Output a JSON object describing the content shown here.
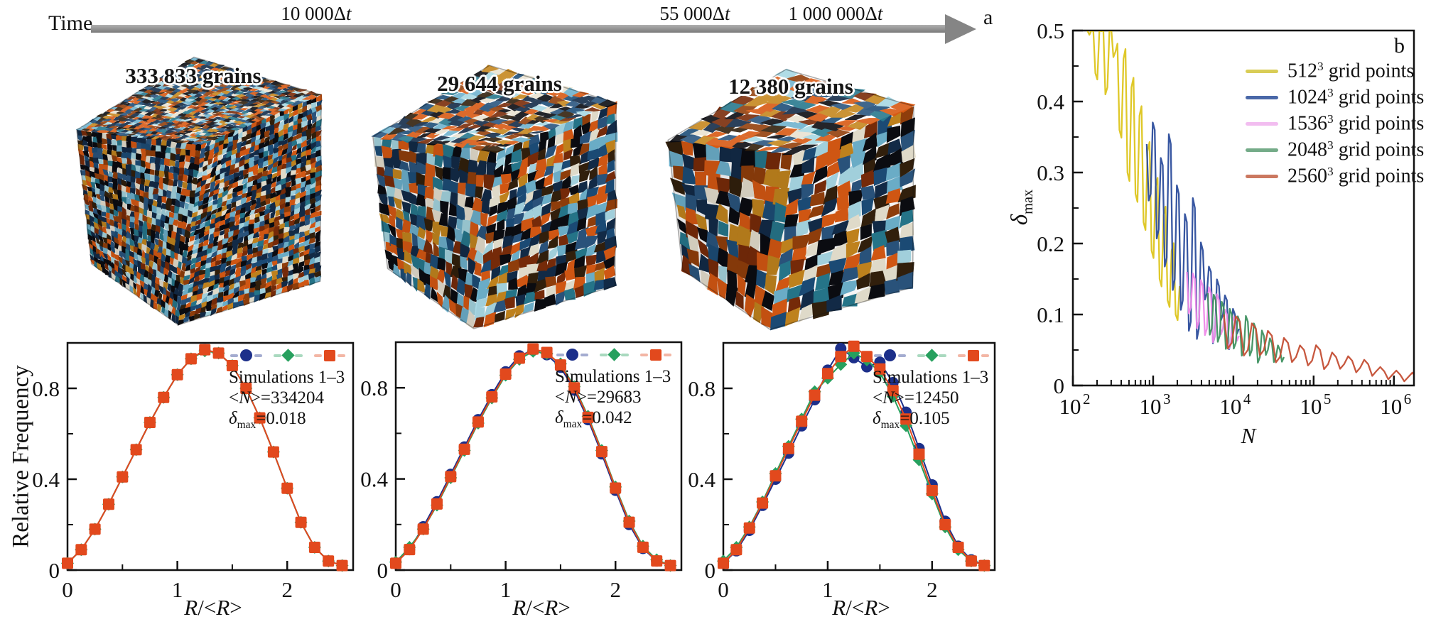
{
  "figure": {
    "panel_a_label": "a",
    "panel_b_label": "b",
    "time": {
      "label": "Time",
      "ticks": [
        {
          "num": "10 000",
          "delta": "Δ",
          "var": "t"
        },
        {
          "num": "55 000",
          "delta": "Δ",
          "var": "t"
        },
        {
          "num": "1 000 000",
          "delta": "Δ",
          "var": "t"
        }
      ]
    },
    "cubes": [
      {
        "grains_label": "333 833 grains"
      },
      {
        "grains_label": "29 644 grains"
      },
      {
        "grains_label": "12 380 grains"
      }
    ],
    "cube_palette": [
      "#132c49",
      "#132c49",
      "#1d4e79",
      "#6fb3cf",
      "#a8d8e4",
      "#d85a14",
      "#d85a14",
      "#94400c",
      "#33210d",
      "#e9e3d2",
      "#0c0d12",
      "#0c0d12",
      "#27798e",
      "#c6871f",
      "#7a2c0a",
      "#2b567f"
    ],
    "arrow_color": "#858585"
  },
  "chart_data": [
    {
      "type": "line",
      "panel": "a-left-histogram",
      "ylabel": "Relative Frequency",
      "xlabel_parts": {
        "r1": "R",
        "mid": "/<",
        "r2": "R",
        "close": ">"
      },
      "xlim": [
        0,
        2.6
      ],
      "ylim": [
        0,
        1.0
      ],
      "xticks": [
        {
          "v": 0,
          "label": "0"
        },
        {
          "v": 1,
          "label": "1"
        },
        {
          "v": 2,
          "label": "2"
        }
      ],
      "xminor": [
        0.5,
        1.5,
        2.5
      ],
      "yticks": [
        {
          "v": 0,
          "label": "0"
        },
        {
          "v": 0.4,
          "label": "0.4"
        },
        {
          "v": 0.8,
          "label": "0.8"
        }
      ],
      "yminor": [
        0.2,
        0.6
      ],
      "x": [
        0,
        0.125,
        0.25,
        0.375,
        0.5,
        0.625,
        0.75,
        0.875,
        1.0,
        1.125,
        1.25,
        1.375,
        1.5,
        1.625,
        1.75,
        1.875,
        2.0,
        2.125,
        2.25,
        2.375,
        2.5
      ],
      "series": [
        {
          "marker": "circle",
          "color": "#1c2f8a",
          "values": [
            0.03,
            0.09,
            0.18,
            0.29,
            0.41,
            0.53,
            0.65,
            0.76,
            0.86,
            0.93,
            0.97,
            0.955,
            0.9,
            0.8,
            0.67,
            0.52,
            0.36,
            0.21,
            0.1,
            0.04,
            0.02
          ]
        },
        {
          "marker": "diamond",
          "color": "#27a05e",
          "values": [
            0.03,
            0.09,
            0.18,
            0.29,
            0.41,
            0.53,
            0.65,
            0.76,
            0.86,
            0.93,
            0.965,
            0.955,
            0.9,
            0.8,
            0.67,
            0.52,
            0.36,
            0.21,
            0.1,
            0.04,
            0.02
          ]
        },
        {
          "marker": "square",
          "color": "#e2491d",
          "values": [
            0.03,
            0.09,
            0.18,
            0.29,
            0.41,
            0.53,
            0.65,
            0.76,
            0.86,
            0.93,
            0.97,
            0.955,
            0.9,
            0.8,
            0.67,
            0.52,
            0.36,
            0.21,
            0.1,
            0.04,
            0.02
          ]
        }
      ],
      "legend": {
        "title": "Simulations 1–3",
        "n_prefix": "<",
        "n_var": "N",
        "n_suffix": ">=334204",
        "delta_sym": "δ",
        "delta_sub": "max",
        "delta_val": "=0.018"
      }
    },
    {
      "type": "line",
      "panel": "a-middle-histogram",
      "xlabel_parts": {
        "r1": "R",
        "mid": "/<",
        "r2": "R",
        "close": ">"
      },
      "xlim": [
        0,
        2.6
      ],
      "ylim": [
        0,
        1.0
      ],
      "xticks": [
        {
          "v": 0,
          "label": "0"
        },
        {
          "v": 1,
          "label": "1"
        },
        {
          "v": 2,
          "label": "2"
        }
      ],
      "xminor": [
        0.5,
        1.5,
        2.5
      ],
      "yticks": [
        {
          "v": 0,
          "label": "0"
        },
        {
          "v": 0.4,
          "label": "0.4"
        },
        {
          "v": 0.8,
          "label": "0.8"
        }
      ],
      "yminor": [
        0.2,
        0.6
      ],
      "x": [
        0,
        0.125,
        0.25,
        0.375,
        0.5,
        0.625,
        0.75,
        0.875,
        1.0,
        1.125,
        1.25,
        1.375,
        1.5,
        1.625,
        1.75,
        1.875,
        2.0,
        2.125,
        2.25,
        2.375,
        2.5
      ],
      "series": [
        {
          "marker": "circle",
          "color": "#1c2f8a",
          "values": [
            0.03,
            0.09,
            0.19,
            0.3,
            0.42,
            0.54,
            0.66,
            0.77,
            0.87,
            0.94,
            0.965,
            0.945,
            0.89,
            0.79,
            0.66,
            0.51,
            0.35,
            0.2,
            0.095,
            0.04,
            0.02
          ]
        },
        {
          "marker": "diamond",
          "color": "#27a05e",
          "values": [
            0.035,
            0.1,
            0.18,
            0.285,
            0.405,
            0.525,
            0.645,
            0.755,
            0.855,
            0.925,
            0.96,
            0.95,
            0.905,
            0.805,
            0.675,
            0.525,
            0.365,
            0.215,
            0.105,
            0.045,
            0.02
          ]
        },
        {
          "marker": "square",
          "color": "#e2491d",
          "values": [
            0.03,
            0.09,
            0.18,
            0.29,
            0.41,
            0.53,
            0.65,
            0.76,
            0.86,
            0.93,
            0.97,
            0.955,
            0.9,
            0.8,
            0.67,
            0.52,
            0.36,
            0.21,
            0.1,
            0.04,
            0.02
          ]
        }
      ],
      "legend": {
        "title": "Simulations 1–3",
        "n_prefix": "<",
        "n_var": "N",
        "n_suffix": ">=29683",
        "delta_sym": "δ",
        "delta_sub": "max",
        "delta_val": "=0.042"
      }
    },
    {
      "type": "line",
      "panel": "a-right-histogram",
      "xlabel_parts": {
        "r1": "R",
        "mid": "/<",
        "r2": "R",
        "close": ">"
      },
      "xlim": [
        0,
        2.6
      ],
      "ylim": [
        0,
        1.0
      ],
      "xticks": [
        {
          "v": 0,
          "label": "0"
        },
        {
          "v": 1,
          "label": "1"
        },
        {
          "v": 2,
          "label": "2"
        }
      ],
      "xminor": [
        0.5,
        1.5,
        2.5
      ],
      "yticks": [
        {
          "v": 0,
          "label": "0"
        },
        {
          "v": 0.4,
          "label": "0.4"
        },
        {
          "v": 0.8,
          "label": "0.8"
        }
      ],
      "yminor": [
        0.2,
        0.6
      ],
      "x": [
        0,
        0.125,
        0.25,
        0.375,
        0.5,
        0.625,
        0.75,
        0.875,
        1.0,
        1.125,
        1.25,
        1.375,
        1.5,
        1.625,
        1.75,
        1.875,
        2.0,
        2.125,
        2.25,
        2.375,
        2.5
      ],
      "series": [
        {
          "marker": "circle",
          "color": "#1c2f8a",
          "values": [
            0.03,
            0.085,
            0.175,
            0.285,
            0.4,
            0.515,
            0.635,
            0.75,
            0.88,
            0.975,
            0.935,
            0.895,
            0.915,
            0.825,
            0.695,
            0.535,
            0.375,
            0.215,
            0.105,
            0.045,
            0.02
          ]
        },
        {
          "marker": "diamond",
          "color": "#27a05e",
          "values": [
            0.04,
            0.1,
            0.19,
            0.3,
            0.425,
            0.545,
            0.665,
            0.785,
            0.845,
            0.905,
            0.955,
            0.925,
            0.87,
            0.765,
            0.635,
            0.485,
            0.335,
            0.19,
            0.09,
            0.04,
            0.02
          ]
        },
        {
          "marker": "square",
          "color": "#e2491d",
          "values": [
            0.03,
            0.09,
            0.185,
            0.295,
            0.415,
            0.535,
            0.655,
            0.77,
            0.865,
            0.94,
            0.985,
            0.94,
            0.885,
            0.79,
            0.665,
            0.51,
            0.35,
            0.2,
            0.1,
            0.04,
            0.02
          ]
        }
      ],
      "legend": {
        "title": "Simulations 1–3",
        "n_prefix": "<",
        "n_var": "N",
        "n_suffix": ">=12450",
        "delta_sym": "δ",
        "delta_sub": "max",
        "delta_val": "=0.105"
      }
    },
    {
      "type": "line",
      "panel": "b",
      "xscale": "log",
      "xlabel": "N",
      "ylabel_sym": "δ",
      "ylabel_sub": "max",
      "xlim_log": [
        2,
        6.25
      ],
      "ylim": [
        0,
        0.5
      ],
      "xticks": [
        {
          "log": 2,
          "base": "10",
          "exp": "2"
        },
        {
          "log": 3,
          "base": "10",
          "exp": "3"
        },
        {
          "log": 4,
          "base": "10",
          "exp": "4"
        },
        {
          "log": 5,
          "base": "10",
          "exp": "5"
        },
        {
          "log": 6,
          "base": "10",
          "exp": "6"
        }
      ],
      "yticks": [
        {
          "v": 0,
          "label": "0"
        },
        {
          "v": 0.1,
          "label": "0.1"
        },
        {
          "v": 0.2,
          "label": "0.2"
        },
        {
          "v": 0.3,
          "label": "0.3"
        },
        {
          "v": 0.4,
          "label": "0.4"
        },
        {
          "v": 0.5,
          "label": "0.5"
        }
      ],
      "series": [
        {
          "legend": {
            "base": "512",
            "exp": "3",
            "suffix": " grid points"
          },
          "color": "#ddc51e",
          "legend_color": "#d9cd56",
          "x0": 2.18,
          "dx": 0.05,
          "values": [
            0.5,
            0.5,
            0.44,
            0.5,
            0.5,
            0.42,
            0.5,
            0.47,
            0.36,
            0.46,
            0.3,
            0.42,
            0.27,
            0.38,
            0.23,
            0.33,
            0.19,
            0.28,
            0.15,
            0.24,
            0.12,
            0.19,
            0.1,
            0.14
          ]
        },
        {
          "legend": {
            "base": "1024",
            "exp": "3",
            "suffix": " grid points"
          },
          "color": "#2c4d9c",
          "legend_color": "#4a68a8",
          "x0": 2.92,
          "dx": 0.05,
          "values": [
            0.34,
            0.27,
            0.36,
            0.22,
            0.31,
            0.18,
            0.34,
            0.15,
            0.27,
            0.12,
            0.23,
            0.09,
            0.25,
            0.08,
            0.19,
            0.13,
            0.16,
            0.07,
            0.14,
            0.1,
            0.12,
            0.06,
            0.1,
            0.08
          ]
        },
        {
          "legend": {
            "base": "1536",
            "exp": "3",
            "suffix": " grid points"
          },
          "color": "#ee8ae8",
          "legend_color": "#f2bdf0",
          "x0": 3.42,
          "dx": 0.05,
          "values": [
            0.16,
            0.11,
            0.15,
            0.09,
            0.14,
            0.08,
            0.13,
            0.07,
            0.12,
            0.08,
            0.1,
            0.06,
            0.09,
            0.07
          ]
        },
        {
          "legend": {
            "base": "2048",
            "exp": "3",
            "suffix": " grid points"
          },
          "color": "#3e9160",
          "legend_color": "#74ab88",
          "x0": 3.68,
          "dx": 0.05,
          "values": [
            0.13,
            0.08,
            0.12,
            0.07,
            0.11,
            0.06,
            0.1,
            0.06,
            0.09,
            0.05,
            0.09,
            0.05,
            0.08,
            0.04,
            0.07,
            0.05,
            0.06,
            0.04,
            0.05,
            0.04
          ]
        },
        {
          "legend": {
            "base": "2560",
            "exp": "3",
            "suffix": " grid points"
          },
          "color": "#c44f35",
          "legend_color": "#cb7860",
          "x0": 3.88,
          "dx": 0.1,
          "values": [
            0.1,
            0.06,
            0.09,
            0.05,
            0.08,
            0.05,
            0.07,
            0.04,
            0.06,
            0.04,
            0.05,
            0.035,
            0.05,
            0.03,
            0.04,
            0.03,
            0.035,
            0.025,
            0.03,
            0.02,
            0.02,
            0.015,
            0.015,
            0.012,
            0.01
          ]
        }
      ]
    }
  ]
}
